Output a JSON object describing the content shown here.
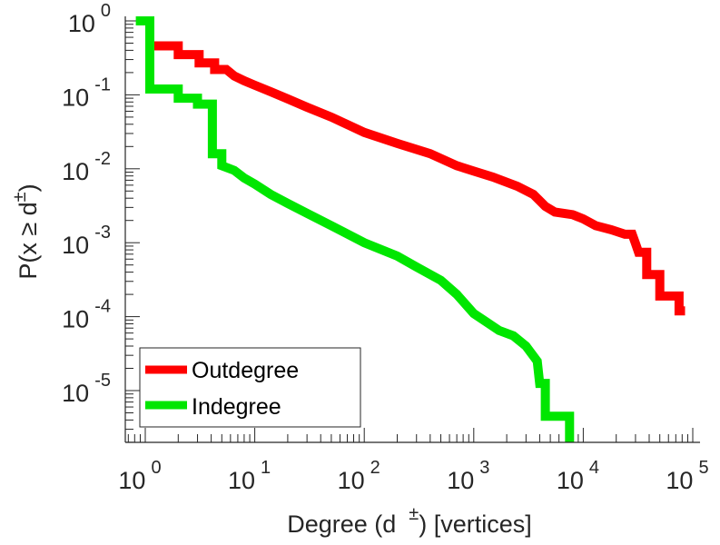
{
  "chart_data": {
    "type": "line",
    "title": "",
    "xlabel": "Degree (d ±) [vertices]",
    "xlabel_parts": {
      "before": "Degree (d",
      "sup": "±",
      "after": ") [vertices]"
    },
    "ylabel": "P(x ≥ d±)",
    "ylabel_parts": {
      "before": "P(x ≥ d",
      "sup": "±",
      "after": ")"
    },
    "xscale": "log",
    "yscale": "log",
    "xlim": [
      0.66,
      117000
    ],
    "ylim": [
      2e-06,
      1
    ],
    "x_ticks": [
      {
        "value": 1,
        "base": "10",
        "exp": "0"
      },
      {
        "value": 10,
        "base": "10",
        "exp": "1"
      },
      {
        "value": 100,
        "base": "10",
        "exp": "2"
      },
      {
        "value": 1000,
        "base": "10",
        "exp": "3"
      },
      {
        "value": 10000,
        "base": "10",
        "exp": "4"
      },
      {
        "value": 100000,
        "base": "10",
        "exp": "5"
      }
    ],
    "y_ticks": [
      {
        "value": 1,
        "base": "10",
        "exp": "0"
      },
      {
        "value": 0.1,
        "base": "10",
        "exp": "-1"
      },
      {
        "value": 0.01,
        "base": "10",
        "exp": "-2"
      },
      {
        "value": 0.001,
        "base": "10",
        "exp": "-3"
      },
      {
        "value": 0.0001,
        "base": "10",
        "exp": "-4"
      },
      {
        "value": 1e-05,
        "base": "10",
        "exp": "-5"
      }
    ],
    "grid": false,
    "legend": {
      "position": "bottom-left"
    },
    "series": [
      {
        "name": "Outdegree",
        "color": "#ff0000",
        "points": [
          [
            1.1,
            0.46
          ],
          [
            2.0,
            0.46
          ],
          [
            2.0,
            0.35
          ],
          [
            3.1,
            0.35
          ],
          [
            3.1,
            0.27
          ],
          [
            4.3,
            0.27
          ],
          [
            4.3,
            0.22
          ],
          [
            5.5,
            0.22
          ],
          [
            6.5,
            0.18
          ],
          [
            8,
            0.155
          ],
          [
            10,
            0.135
          ],
          [
            14,
            0.11
          ],
          [
            20,
            0.088
          ],
          [
            30,
            0.068
          ],
          [
            50,
            0.05
          ],
          [
            100,
            0.031
          ],
          [
            200,
            0.022
          ],
          [
            400,
            0.016
          ],
          [
            700,
            0.011
          ],
          [
            1000,
            0.0093
          ],
          [
            1500,
            0.0077
          ],
          [
            2500,
            0.0058
          ],
          [
            3500,
            0.0045
          ],
          [
            4500,
            0.0031
          ],
          [
            5500,
            0.0026
          ],
          [
            8000,
            0.0024
          ],
          [
            10000,
            0.0021
          ],
          [
            13000,
            0.0017
          ],
          [
            18000,
            0.0015
          ],
          [
            24000,
            0.0013
          ],
          [
            28000,
            0.0013
          ],
          [
            30000,
            0.00098
          ],
          [
            32000,
            0.00074
          ],
          [
            38000,
            0.00074
          ],
          [
            38000,
            0.00037
          ],
          [
            50000,
            0.00037
          ],
          [
            50000,
            0.00019
          ],
          [
            75000,
            0.00019
          ],
          [
            75000,
            0.00012
          ],
          [
            85000,
            0.00012
          ]
        ]
      },
      {
        "name": "Indegree",
        "color": "#00e600",
        "points": [
          [
            0.82,
            1
          ],
          [
            1.1,
            1
          ],
          [
            1.1,
            0.12
          ],
          [
            2.0,
            0.12
          ],
          [
            2.0,
            0.09
          ],
          [
            3.0,
            0.09
          ],
          [
            3.0,
            0.075
          ],
          [
            4.1,
            0.075
          ],
          [
            4.1,
            0.016
          ],
          [
            5,
            0.016
          ],
          [
            5,
            0.011
          ],
          [
            6.5,
            0.0095
          ],
          [
            8,
            0.0075
          ],
          [
            10,
            0.0062
          ],
          [
            14,
            0.0045
          ],
          [
            20,
            0.0034
          ],
          [
            30,
            0.0025
          ],
          [
            50,
            0.0017
          ],
          [
            100,
            0.001
          ],
          [
            200,
            0.00066
          ],
          [
            300,
            0.00047
          ],
          [
            500,
            0.00031
          ],
          [
            700,
            0.0002
          ],
          [
            1000,
            0.00011
          ],
          [
            1300,
            8.5e-05
          ],
          [
            1700,
            6.5e-05
          ],
          [
            2300,
            5.5e-05
          ],
          [
            3000,
            4e-05
          ],
          [
            3800,
            2.5e-05
          ],
          [
            4000,
            1.25e-05
          ],
          [
            4500,
            1.25e-05
          ],
          [
            4500,
            4.5e-06
          ],
          [
            7500,
            4.5e-06
          ],
          [
            7500,
            2e-06
          ]
        ]
      }
    ]
  }
}
